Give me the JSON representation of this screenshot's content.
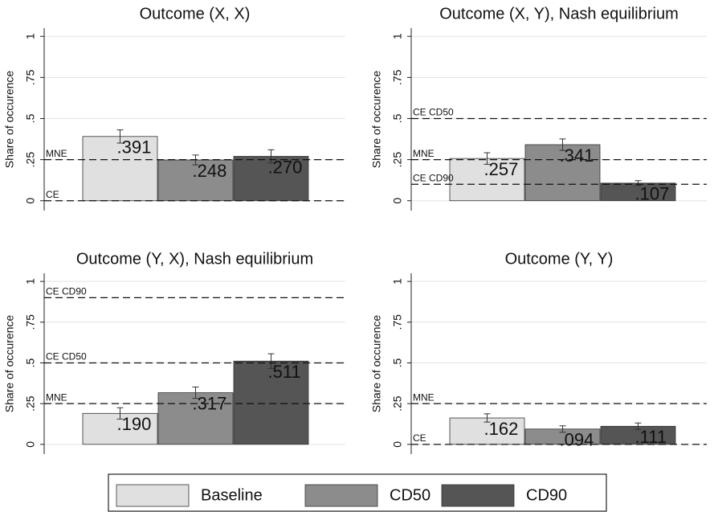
{
  "chart_data": [
    {
      "type": "bar",
      "title": "Outcome (X, X)",
      "y_label": "Share of occurence",
      "values": [
        0.391,
        0.248,
        0.27
      ],
      "value_labels": [
        ".391",
        ".248",
        ".270"
      ],
      "errors": [
        0.04,
        0.03,
        0.04
      ],
      "ylim": [
        -0.06,
        1.05
      ],
      "yticks": [
        0,
        {
          "value": 0.25,
          "label": ".25"
        },
        {
          "value": 0.5,
          "label": ".5"
        },
        {
          "value": 0.75,
          "label": ".75"
        },
        1
      ],
      "grid": true,
      "reference_lines": [
        {
          "value": 0.25,
          "label": "MNE"
        },
        {
          "value": 0,
          "label": "CE"
        }
      ]
    },
    {
      "type": "bar",
      "title": "Outcome (X, Y), Nash equilibrium",
      "y_label": "Share of occurence",
      "values": [
        0.257,
        0.341,
        0.107
      ],
      "value_labels": [
        ".257",
        ".341",
        ".107"
      ],
      "errors": [
        0.035,
        0.035,
        0.015
      ],
      "ylim": [
        -0.06,
        1.05
      ],
      "yticks": [
        0,
        {
          "value": 0.25,
          "label": ".25"
        },
        {
          "value": 0.5,
          "label": ".5"
        },
        {
          "value": 0.75,
          "label": ".75"
        },
        1
      ],
      "grid": true,
      "reference_lines": [
        {
          "value": 0.5,
          "label": "CE CD50"
        },
        {
          "value": 0.25,
          "label": "MNE"
        },
        {
          "value": 0.1,
          "label": "CE CD90"
        }
      ]
    },
    {
      "type": "bar",
      "title": "Outcome (Y, X), Nash equilibrium",
      "y_label": "Share of occurence",
      "values": [
        0.19,
        0.317,
        0.511
      ],
      "value_labels": [
        ".190",
        ".317",
        ".511"
      ],
      "errors": [
        0.035,
        0.035,
        0.045
      ],
      "ylim": [
        -0.06,
        1.05
      ],
      "yticks": [
        0,
        {
          "value": 0.25,
          "label": ".25"
        },
        {
          "value": 0.5,
          "label": ".5"
        },
        {
          "value": 0.75,
          "label": ".75"
        },
        1
      ],
      "grid": true,
      "reference_lines": [
        {
          "value": 0.9,
          "label": "CE CD90"
        },
        {
          "value": 0.5,
          "label": "CE CD50"
        },
        {
          "value": 0.25,
          "label": "MNE"
        }
      ]
    },
    {
      "type": "bar",
      "title": "Outcome (Y, Y)",
      "y_label": "Share of occurence",
      "values": [
        0.162,
        0.094,
        0.111
      ],
      "value_labels": [
        ".162",
        ".094",
        ".111"
      ],
      "errors": [
        0.025,
        0.02,
        0.02
      ],
      "ylim": [
        -0.06,
        1.05
      ],
      "yticks": [
        0,
        {
          "value": 0.25,
          "label": ".25"
        },
        {
          "value": 0.5,
          "label": ".5"
        },
        {
          "value": 0.75,
          "label": ".75"
        },
        1
      ],
      "grid": true,
      "reference_lines": [
        {
          "value": 0.25,
          "label": "MNE"
        },
        {
          "value": 0,
          "label": "CE"
        }
      ]
    }
  ],
  "legend": [
    {
      "name": "Baseline",
      "color": "#e0e0e0"
    },
    {
      "name": "CD50",
      "color": "#8c8c8c"
    },
    {
      "name": "CD90",
      "color": "#555555"
    }
  ]
}
